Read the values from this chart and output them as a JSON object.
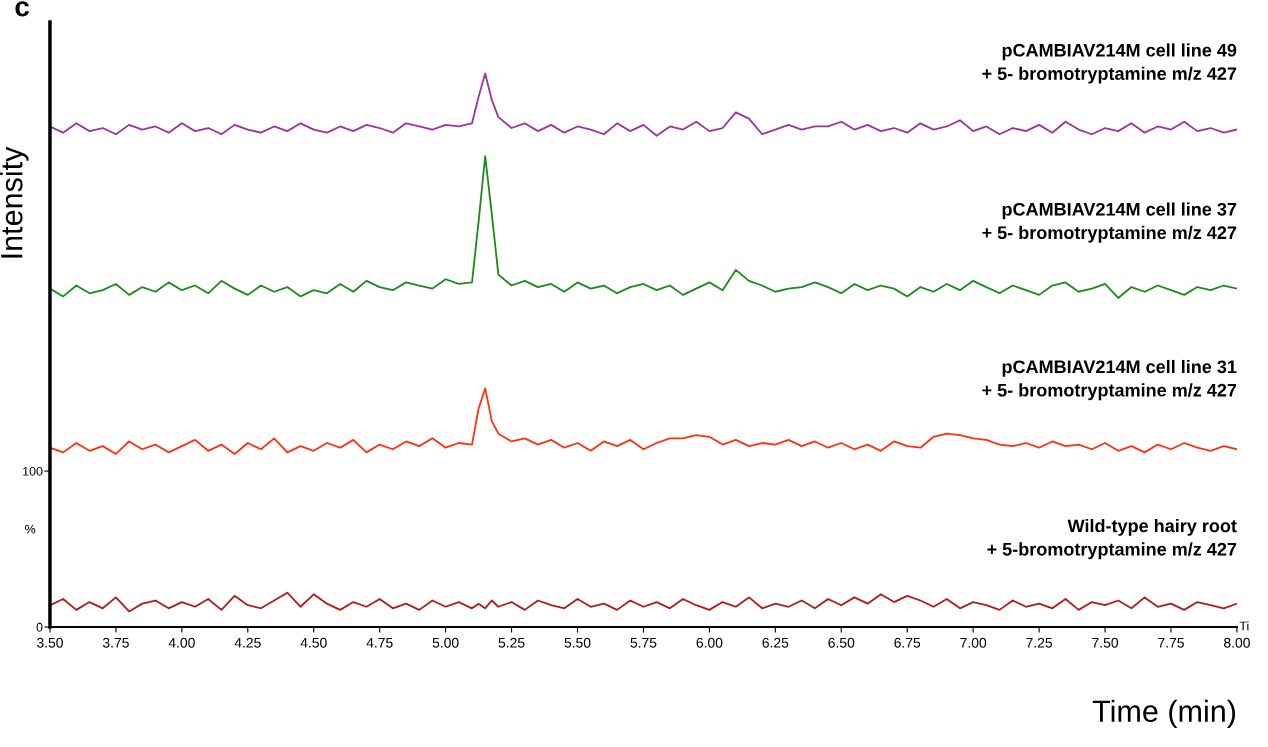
{
  "chart_data": {
    "type": "line",
    "title": "c",
    "xlabel": "Time (min)",
    "ylabel": "Intensity",
    "annotations": [
      "%",
      "Ti"
    ],
    "xlim": [
      3.5,
      8.0
    ],
    "xticks": [
      {
        "value": 3.5,
        "label": "3.50"
      },
      {
        "value": 3.75,
        "label": "3.75"
      },
      {
        "value": 4.0,
        "label": "4.00"
      },
      {
        "value": 4.25,
        "label": "4.25"
      },
      {
        "value": 4.5,
        "label": "4.50"
      },
      {
        "value": 4.75,
        "label": "4.75"
      },
      {
        "value": 5.0,
        "label": "5.00"
      },
      {
        "value": 5.25,
        "label": "5.25"
      },
      {
        "value": 5.5,
        "label": "5.50"
      },
      {
        "value": 5.75,
        "label": "5.75"
      },
      {
        "value": 6.0,
        "label": "6.00"
      },
      {
        "value": 6.25,
        "label": "6.25"
      },
      {
        "value": 6.5,
        "label": "6.50"
      },
      {
        "value": 6.75,
        "label": "6.75"
      },
      {
        "value": 7.0,
        "label": "7.00"
      },
      {
        "value": 7.25,
        "label": "7.25"
      },
      {
        "value": 7.5,
        "label": "7.50"
      },
      {
        "value": 7.75,
        "label": "7.75"
      },
      {
        "value": 8.0,
        "label": "8.00"
      }
    ],
    "ylim": [
      0,
      388
    ],
    "yticks": [
      0,
      100
    ],
    "grid": false,
    "legend": false,
    "x": [
      3.5,
      3.55,
      3.6,
      3.65,
      3.7,
      3.75,
      3.8,
      3.85,
      3.9,
      3.95,
      4.0,
      4.05,
      4.1,
      4.15,
      4.2,
      4.25,
      4.3,
      4.35,
      4.4,
      4.45,
      4.5,
      4.55,
      4.6,
      4.65,
      4.7,
      4.75,
      4.8,
      4.85,
      4.9,
      4.95,
      5.0,
      5.05,
      5.1,
      5.125,
      5.15,
      5.175,
      5.2,
      5.25,
      5.3,
      5.35,
      5.4,
      5.45,
      5.5,
      5.55,
      5.6,
      5.65,
      5.7,
      5.75,
      5.8,
      5.85,
      5.9,
      5.95,
      6.0,
      6.05,
      6.1,
      6.15,
      6.2,
      6.25,
      6.3,
      6.35,
      6.4,
      6.45,
      6.5,
      6.55,
      6.6,
      6.65,
      6.7,
      6.75,
      6.8,
      6.85,
      6.9,
      6.95,
      7.0,
      7.05,
      7.1,
      7.15,
      7.2,
      7.25,
      7.3,
      7.35,
      7.4,
      7.45,
      7.5,
      7.55,
      7.6,
      7.65,
      7.7,
      7.75,
      7.8,
      7.85,
      7.9,
      7.95,
      8.0
    ],
    "series": [
      {
        "name": "pCAMBIAV214M cell line 49\n+ 5- bromotryptamine m/z 427",
        "color": "#a0329f",
        "values": [
          321,
          317,
          323,
          318,
          320,
          316,
          322,
          319,
          321,
          317,
          323,
          318,
          320,
          316,
          322,
          319,
          317,
          321,
          318,
          323,
          319,
          317,
          321,
          318,
          322,
          320,
          317,
          323,
          321,
          319,
          322,
          321,
          323,
          340,
          355,
          338,
          327,
          320,
          323,
          318,
          322,
          317,
          321,
          319,
          316,
          323,
          318,
          322,
          315,
          321,
          319,
          324,
          318,
          320,
          330,
          326,
          316,
          319,
          322,
          319,
          321,
          321,
          324,
          319,
          322,
          318,
          320,
          317,
          323,
          319,
          321,
          325,
          318,
          321,
          316,
          320,
          318,
          322,
          317,
          324,
          319,
          316,
          320,
          318,
          323,
          317,
          321,
          319,
          324,
          318,
          320,
          317,
          319
        ]
      },
      {
        "name": "pCAMBIAV214M cell line 37\n+ 5- bromotryptamine m/z 427",
        "color": "#1a8c1a",
        "values": [
          217,
          212,
          219,
          214,
          216,
          220,
          213,
          218,
          215,
          221,
          216,
          219,
          214,
          222,
          217,
          213,
          219,
          215,
          218,
          212,
          216,
          214,
          220,
          215,
          222,
          218,
          216,
          221,
          219,
          217,
          223,
          220,
          221,
          260,
          302,
          265,
          226,
          219,
          222,
          218,
          220,
          215,
          221,
          217,
          219,
          214,
          218,
          220,
          216,
          219,
          213,
          217,
          221,
          216,
          229,
          222,
          219,
          215,
          217,
          218,
          221,
          218,
          214,
          220,
          216,
          219,
          217,
          212,
          218,
          215,
          220,
          216,
          222,
          218,
          214,
          219,
          216,
          213,
          219,
          221,
          215,
          217,
          220,
          211,
          218,
          215,
          219,
          216,
          213,
          218,
          216,
          219,
          217
        ]
      },
      {
        "name": "pCAMBIAV214M cell line 31\n+ 5- bromotryptamine m/z 427",
        "color": "#ff3010",
        "values": [
          115,
          112,
          118,
          113,
          116,
          111,
          119,
          114,
          117,
          112,
          116,
          120,
          113,
          117,
          111,
          118,
          114,
          121,
          112,
          116,
          113,
          118,
          115,
          120,
          112,
          117,
          114,
          119,
          116,
          121,
          115,
          118,
          117,
          140,
          153,
          132,
          124,
          119,
          121,
          117,
          120,
          115,
          118,
          113,
          119,
          116,
          120,
          114,
          118,
          121,
          121,
          123,
          122,
          117,
          120,
          116,
          118,
          117,
          120,
          116,
          119,
          115,
          118,
          114,
          117,
          113,
          119,
          116,
          115,
          122,
          124,
          123,
          121,
          120,
          117,
          116,
          118,
          115,
          119,
          116,
          117,
          114,
          118,
          113,
          116,
          112,
          117,
          114,
          118,
          115,
          113,
          116,
          114
        ]
      },
      {
        "name": "Wild-type hairy root\n+ 5-bromotryptamine m/z 427",
        "color": "#b01c1c",
        "values": [
          14,
          18,
          11,
          16,
          12,
          19,
          10,
          15,
          17,
          12,
          16,
          13,
          18,
          11,
          20,
          14,
          12,
          17,
          22,
          13,
          21,
          15,
          11,
          16,
          13,
          18,
          12,
          15,
          11,
          17,
          13,
          16,
          12,
          15,
          12,
          17,
          13,
          16,
          11,
          17,
          14,
          12,
          18,
          13,
          15,
          11,
          17,
          13,
          16,
          12,
          18,
          14,
          11,
          16,
          13,
          19,
          12,
          15,
          13,
          17,
          12,
          18,
          14,
          19,
          15,
          21,
          16,
          20,
          17,
          13,
          18,
          12,
          16,
          14,
          11,
          17,
          13,
          15,
          12,
          18,
          11,
          16,
          14,
          17,
          12,
          19,
          13,
          15,
          11,
          16,
          14,
          12,
          15
        ]
      }
    ]
  }
}
